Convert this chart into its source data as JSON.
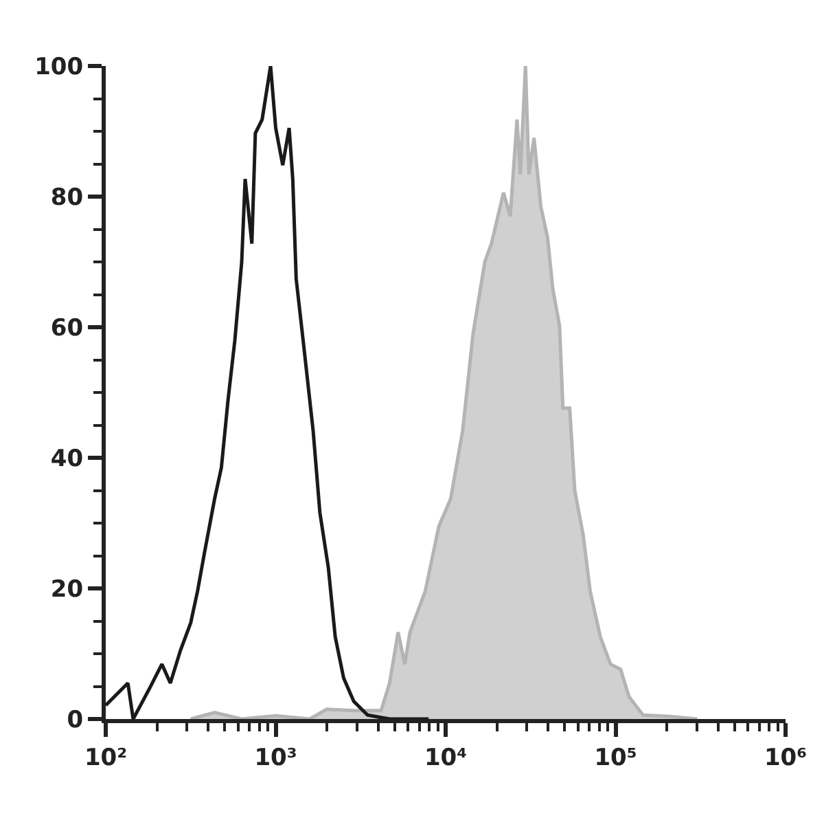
{
  "chart_data": {
    "type": "line",
    "log": "x",
    "xlim": [
      100,
      1000000
    ],
    "ylim": [
      0,
      100
    ],
    "xticks": [
      {
        "value": 100,
        "label": "10²"
      },
      {
        "value": 200,
        "label": null
      },
      {
        "value": 300,
        "label": null
      },
      {
        "value": 400,
        "label": null
      },
      {
        "value": 500,
        "label": null
      },
      {
        "value": 600,
        "label": null
      },
      {
        "value": 700,
        "label": null
      },
      {
        "value": 800,
        "label": null
      },
      {
        "value": 900,
        "label": null
      },
      {
        "value": 1000,
        "label": "10³"
      },
      {
        "value": 2000,
        "label": null
      },
      {
        "value": 3000,
        "label": null
      },
      {
        "value": 4000,
        "label": null
      },
      {
        "value": 5000,
        "label": null
      },
      {
        "value": 6000,
        "label": null
      },
      {
        "value": 7000,
        "label": null
      },
      {
        "value": 8000,
        "label": null
      },
      {
        "value": 9000,
        "label": null
      },
      {
        "value": 10000,
        "label": "10⁴"
      },
      {
        "value": 20000,
        "label": null
      },
      {
        "value": 30000,
        "label": null
      },
      {
        "value": 40000,
        "label": null
      },
      {
        "value": 50000,
        "label": null
      },
      {
        "value": 60000,
        "label": null
      },
      {
        "value": 70000,
        "label": null
      },
      {
        "value": 80000,
        "label": null
      },
      {
        "value": 90000,
        "label": null
      },
      {
        "value": 100000,
        "label": "10⁵"
      },
      {
        "value": 200000,
        "label": null
      },
      {
        "value": 300000,
        "label": null
      },
      {
        "value": 400000,
        "label": null
      },
      {
        "value": 500000,
        "label": null
      },
      {
        "value": 600000,
        "label": null
      },
      {
        "value": 700000,
        "label": null
      },
      {
        "value": 800000,
        "label": null
      },
      {
        "value": 900000,
        "label": null
      },
      {
        "value": 1000000,
        "label": "10⁶"
      }
    ],
    "yticks": [
      0,
      {
        "value": 5,
        "label": null
      },
      {
        "value": 10,
        "label": null
      },
      {
        "value": 15,
        "label": null
      },
      20,
      {
        "value": 25,
        "label": null
      },
      {
        "value": 30,
        "label": null
      },
      {
        "value": 35,
        "label": null
      },
      40,
      {
        "value": 45,
        "label": null
      },
      {
        "value": 50,
        "label": null
      },
      {
        "value": 55,
        "label": null
      },
      60,
      {
        "value": 65,
        "label": null
      },
      {
        "value": 70,
        "label": null
      },
      {
        "value": 75,
        "label": null
      },
      80,
      {
        "value": 85,
        "label": null
      },
      {
        "value": 90,
        "label": null
      },
      {
        "value": 95,
        "label": null
      },
      100
    ],
    "series": [
      {
        "type": "area",
        "color": "#b4b4b4",
        "x": [
          316,
          437,
          631,
          1000,
          1585,
          1995,
          2880,
          4170,
          4680,
          5250,
          5750,
          6170,
          7590,
          9120,
          10700,
          12600,
          14500,
          17000,
          18600,
          21900,
          24000,
          26300,
          27500,
          29500,
          30900,
          33100,
          36300,
          39800,
          42700,
          46800,
          49000,
          53700,
          57500,
          64600,
          70800,
          81300,
          93300,
          107000,
          120000,
          145000,
          209000,
          302000
        ],
        "values": [
          0,
          1,
          0,
          0.5,
          0,
          1.5,
          1.3,
          1.3,
          5.5,
          13.3,
          8.4,
          13.3,
          19.6,
          29.5,
          33.7,
          44.2,
          59,
          70,
          72.8,
          80.6,
          77,
          91.8,
          83.4,
          100,
          83.4,
          89,
          78.5,
          73.7,
          65.9,
          60.2,
          47.6,
          47.6,
          35,
          28,
          19.6,
          12.6,
          8.4,
          7.6,
          3.4,
          0.6,
          0.4,
          0
        ]
      },
      {
        "color": "#1a1a1a",
        "x": [
          100,
          135,
          145,
          182,
          214,
          240,
          275,
          316,
          347,
          380,
          437,
          479,
          525,
          575,
          631,
          661,
          724,
          759,
          832,
          933,
          1000,
          1100,
          1200,
          1260,
          1320,
          1450,
          1660,
          1820,
          2040,
          2240,
          2510,
          2880,
          3470,
          4680,
          7940
        ],
        "values": [
          2.1,
          5.5,
          0,
          4.8,
          8.4,
          5.5,
          10.5,
          14.7,
          19.6,
          25.3,
          33.7,
          38.5,
          49,
          58,
          70,
          82.7,
          72.8,
          89.7,
          91.8,
          100,
          90.5,
          84.8,
          90.5,
          82.7,
          67.4,
          58,
          44.2,
          31.6,
          23.2,
          12.6,
          6.3,
          2.7,
          0.6,
          0,
          0
        ]
      }
    ]
  }
}
